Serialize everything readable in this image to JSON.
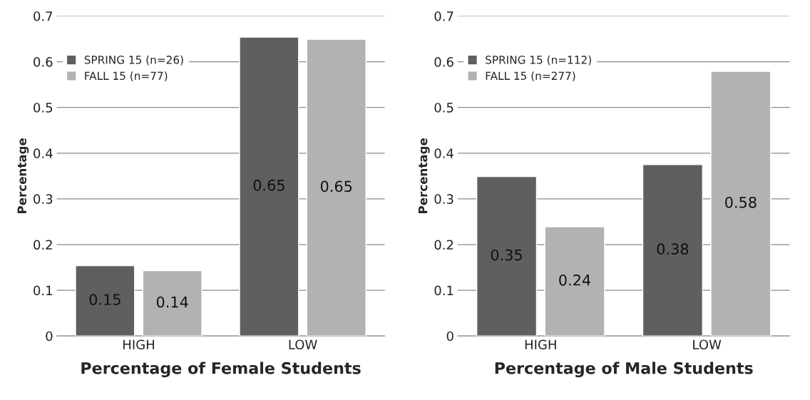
{
  "chart_data": [
    {
      "type": "bar",
      "xlabel": "Percentage of Female Students",
      "ylabel": "Percentage",
      "categories": [
        "HIGH",
        "LOW"
      ],
      "series": [
        {
          "name": "SPRING 15 (n=26)",
          "color": "#5f5f5f",
          "values": [
            0.154,
            0.654
          ],
          "value_labels": [
            "0.15",
            "0.65"
          ]
        },
        {
          "name": "FALL 15 (n=77)",
          "color": "#b2b2b2",
          "values": [
            0.143,
            0.649
          ],
          "value_labels": [
            "0.14",
            "0.65"
          ]
        }
      ],
      "ylim": [
        0,
        0.7
      ],
      "yticks": [
        {
          "value": 0,
          "label": "0"
        },
        0.1,
        0.2,
        0.3,
        0.4,
        0.5,
        0.6,
        0.7
      ],
      "grid": "y",
      "legend": "top left"
    },
    {
      "type": "bar",
      "xlabel": "Percentage of Male Students",
      "ylabel": "Percentage",
      "categories": [
        "HIGH",
        "LOW"
      ],
      "series": [
        {
          "name": "SPRING 15 (n=112)",
          "color": "#5f5f5f",
          "values": [
            0.349,
            0.375
          ],
          "value_labels": [
            "0.35",
            "0.38"
          ]
        },
        {
          "name": "FALL 15 (n=277)",
          "color": "#b2b2b2",
          "values": [
            0.239,
            0.579
          ],
          "value_labels": [
            "0.24",
            "0.58"
          ]
        }
      ],
      "ylim": [
        0,
        0.7
      ],
      "yticks": [
        {
          "value": 0,
          "label": "0"
        },
        0.1,
        0.2,
        0.3,
        0.4,
        0.5,
        0.6,
        0.7
      ],
      "grid": "y",
      "legend": "top left"
    }
  ]
}
